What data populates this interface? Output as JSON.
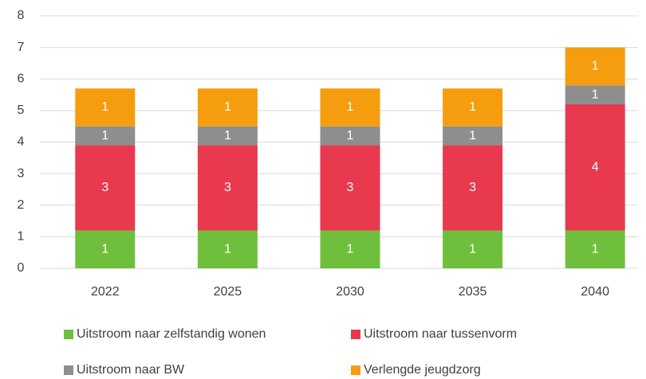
{
  "chart_data": {
    "type": "stacked_bar",
    "categories": [
      "2022",
      "2025",
      "2030",
      "2035",
      "2040"
    ],
    "series": [
      {
        "name": "Uitstroom naar zelfstandig wonen",
        "color": "#70bf3c",
        "values": [
          1.2,
          1.2,
          1.2,
          1.2,
          1.2
        ],
        "value_labels": [
          "1",
          "1",
          "1",
          "1",
          "1"
        ]
      },
      {
        "name": "Uitstroom naar tussenvorm",
        "color": "#e8394f",
        "values": [
          2.7,
          2.7,
          2.7,
          2.7,
          4.0
        ],
        "value_labels": [
          "3",
          "3",
          "3",
          "3",
          "4"
        ]
      },
      {
        "name": "Uitstroom naar BW",
        "color": "#8e8e8e",
        "values": [
          0.6,
          0.6,
          0.6,
          0.6,
          0.6
        ],
        "value_labels": [
          "1",
          "1",
          "1",
          "1",
          "1"
        ]
      },
      {
        "name": "Verlengde jeugdzorg",
        "color": "#f59d0e",
        "values": [
          1.2,
          1.2,
          1.2,
          1.2,
          1.2
        ],
        "value_labels": [
          "1",
          "1",
          "1",
          "1",
          "1"
        ]
      }
    ],
    "ylim": [
      0,
      8
    ],
    "yticks": [
      0,
      1,
      2,
      3,
      4,
      5,
      6,
      7,
      8
    ],
    "grid": true
  }
}
